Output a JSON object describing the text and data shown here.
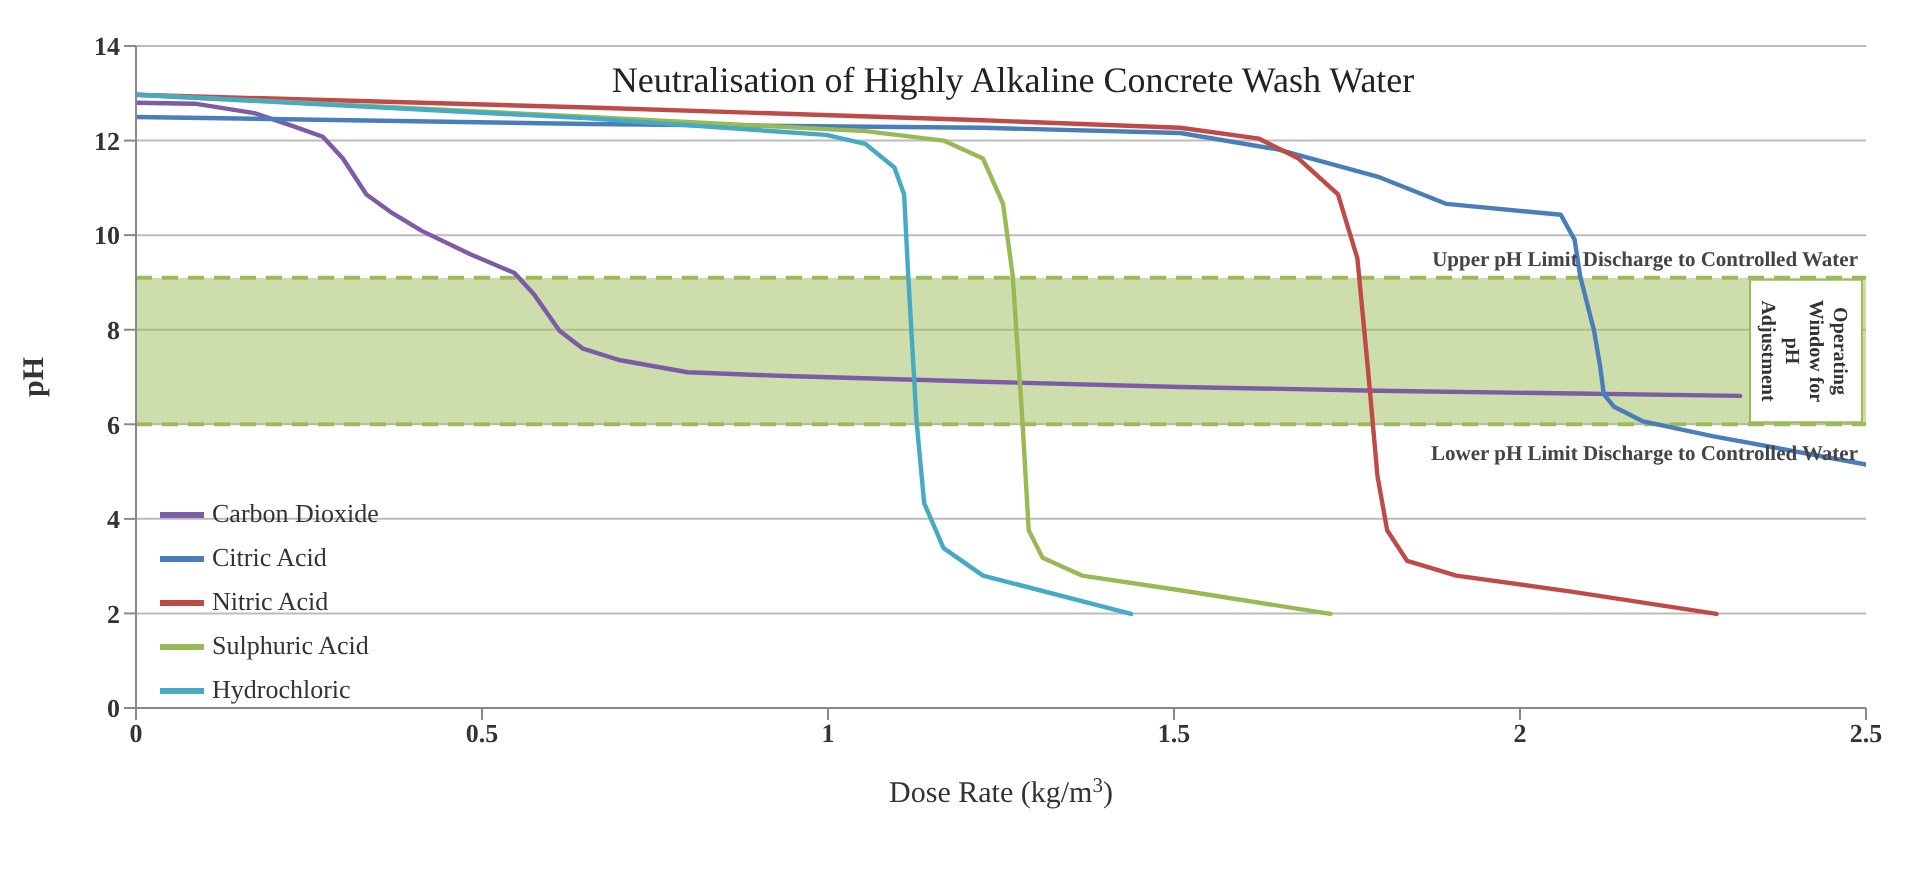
{
  "chart_data": {
    "type": "line",
    "title": "Neutralisation of Highly Alkaline Concrete Wash Water",
    "xlabel": "Dose Rate (kg/m$^{3}$)",
    "ylabel": "pH",
    "xlim": [
      0,
      2.5
    ],
    "xticks": [
      0,
      0.5,
      1,
      1.5,
      2,
      2.5
    ],
    "ylim": [
      0,
      14
    ],
    "yticks": [
      0,
      2,
      4,
      6,
      8,
      10,
      12,
      14
    ],
    "grid": "y",
    "legend": "bottom left",
    "marker": "none",
    "line_style": "solid",
    "series": [
      {
        "name": "Carbon Dioxide",
        "color": "#7d5ba6",
        "x": [
          0,
          0.085,
          0.171,
          0.228,
          0.27,
          0.299,
          0.333,
          0.37,
          0.413,
          0.484,
          0.547,
          0.575,
          0.612,
          0.646,
          0.698,
          0.797,
          0.94,
          1.224,
          1.509,
          1.794,
          2.318
        ],
        "values": [
          12.8,
          12.78,
          12.58,
          12.3,
          12.08,
          11.62,
          10.86,
          10.47,
          10.09,
          9.59,
          9.2,
          8.75,
          7.98,
          7.6,
          7.36,
          7.1,
          7.02,
          6.9,
          6.79,
          6.71,
          6.6
        ]
      },
      {
        "name": "Citric Acid",
        "color": "#4a7ebb",
        "x": [
          0,
          0.655,
          1.224,
          1.509,
          1.651,
          1.794,
          1.894,
          2.059,
          2.079,
          2.087,
          2.107,
          2.116,
          2.121,
          2.136,
          2.178,
          2.278,
          2.5
        ],
        "values": [
          12.5,
          12.35,
          12.27,
          12.16,
          11.81,
          11.24,
          10.66,
          10.43,
          9.9,
          9.13,
          7.98,
          7.21,
          6.64,
          6.37,
          6.06,
          5.75,
          5.15
        ]
      },
      {
        "name": "Nitric Acid",
        "color": "#be4b48",
        "x": [
          0,
          0.655,
          1.224,
          1.509,
          1.623,
          1.68,
          1.737,
          1.765,
          1.78,
          1.794,
          1.808,
          1.837,
          1.908,
          2.079,
          2.284
        ],
        "values": [
          12.97,
          12.7,
          12.43,
          12.27,
          12.04,
          11.62,
          10.86,
          9.51,
          7.21,
          4.91,
          3.76,
          3.11,
          2.8,
          2.45,
          1.99
        ]
      },
      {
        "name": "Sulphuric Acid",
        "color": "#98b954",
        "x": [
          0,
          0.655,
          1.054,
          1.167,
          1.224,
          1.253,
          1.267,
          1.281,
          1.29,
          1.31,
          1.367,
          1.509,
          1.726
        ],
        "values": [
          12.97,
          12.5,
          12.2,
          12.0,
          11.62,
          10.66,
          9.13,
          6.06,
          3.76,
          3.18,
          2.8,
          2.49,
          1.99
        ]
      },
      {
        "name": "Hydrochloric",
        "color": "#46aac5",
        "x": [
          0,
          0.655,
          0.997,
          1.054,
          1.096,
          1.11,
          1.116,
          1.128,
          1.139,
          1.167,
          1.224,
          1.438
        ],
        "values": [
          12.97,
          12.47,
          12.12,
          11.93,
          11.43,
          10.86,
          9.13,
          6.06,
          4.33,
          3.38,
          2.8,
          1.99
        ]
      }
    ],
    "ref_lines": [
      {
        "axis": "y",
        "value": 9.1,
        "label": "Upper pH Limit  Discharge to Controlled Water",
        "color": "#9bbb59",
        "line_style": "dashed"
      },
      {
        "axis": "y",
        "value": 6,
        "label": "Lower pH Limit Discharge to Controlled Water",
        "color": "#9bbb59",
        "line_style": "dashed"
      }
    ],
    "bands": [
      {
        "axis": "y",
        "from": 6,
        "to": 9.1,
        "label": "Operating Window for pH Adjustment",
        "color": "#9bbb59"
      }
    ]
  }
}
